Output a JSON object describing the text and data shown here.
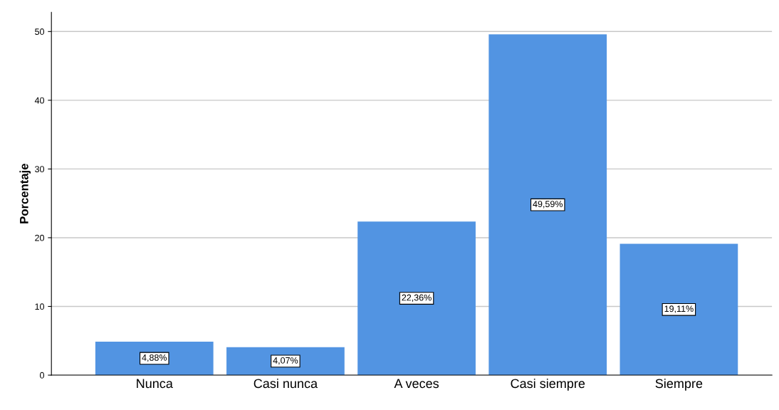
{
  "chart_data": {
    "type": "bar",
    "ylabel": "Porcentaje",
    "categories": [
      "Nunca",
      "Casi nunca",
      "A veces",
      "Casi siempre",
      "Siempre"
    ],
    "values": [
      4.88,
      4.07,
      22.36,
      49.59,
      19.11
    ],
    "value_labels": [
      "4,88%",
      "4,07%",
      "22,36%",
      "49,59%",
      "19,11%"
    ],
    "color": "#5294e2",
    "ylim": [
      0,
      52.8
    ],
    "yticks": [
      0,
      10,
      20,
      30,
      40,
      50
    ],
    "grid": "y"
  }
}
